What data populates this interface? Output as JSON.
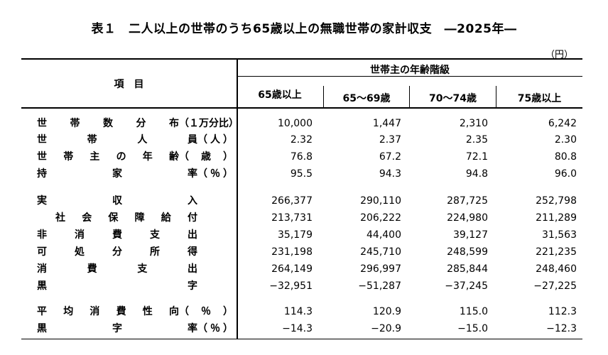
{
  "title": "表１　二人以上の世帯のうち65歳以上の無職世帯の家計収支　―2025年―",
  "unit": "（円）",
  "header": {
    "item": "項　目",
    "group": "世帯主の年齢階級",
    "columns": [
      "65歳以上",
      "65～69歳",
      "70～74歳",
      "75歳以上"
    ]
  },
  "rows": [
    {
      "label": "世帯数分布",
      "paren": "（１万分比）",
      "values": [
        "10,000",
        "1,447",
        "2,310",
        "6,242"
      ]
    },
    {
      "label": "世帯人員",
      "paren": "（人）",
      "values": [
        "2.32",
        "2.37",
        "2.35",
        "2.30"
      ]
    },
    {
      "label": "世帯主の年齢",
      "paren": "（歳）",
      "values": [
        "76.8",
        "67.2",
        "72.1",
        "80.8"
      ]
    },
    {
      "label": "持家率",
      "paren": "（％）",
      "values": [
        "95.5",
        "94.3",
        "94.8",
        "96.0"
      ]
    },
    {
      "label": "実収入",
      "paren": "",
      "values": [
        "266,377",
        "290,110",
        "287,725",
        "252,798"
      ]
    },
    {
      "label": "社会保障給付",
      "paren": "",
      "values": [
        "213,731",
        "206,222",
        "224,980",
        "211,289"
      ]
    },
    {
      "label": "非消費支出",
      "paren": "",
      "values": [
        "35,179",
        "44,400",
        "39,127",
        "31,563"
      ]
    },
    {
      "label": "可処分所得",
      "paren": "",
      "values": [
        "231,198",
        "245,710",
        "248,599",
        "221,235"
      ]
    },
    {
      "label": "消費支出",
      "paren": "",
      "values": [
        "264,149",
        "296,997",
        "285,844",
        "248,460"
      ]
    },
    {
      "label": "黒字",
      "paren": "",
      "values": [
        "−32,951",
        "−51,287",
        "−37,245",
        "−27,225"
      ]
    },
    {
      "label": "平均消費性向",
      "paren": "（％）",
      "values": [
        "114.3",
        "120.9",
        "115.0",
        "112.3"
      ]
    },
    {
      "label": "黒字率",
      "paren": "（％）",
      "values": [
        "−14.3",
        "−20.9",
        "−15.0",
        "−12.3"
      ]
    }
  ]
}
